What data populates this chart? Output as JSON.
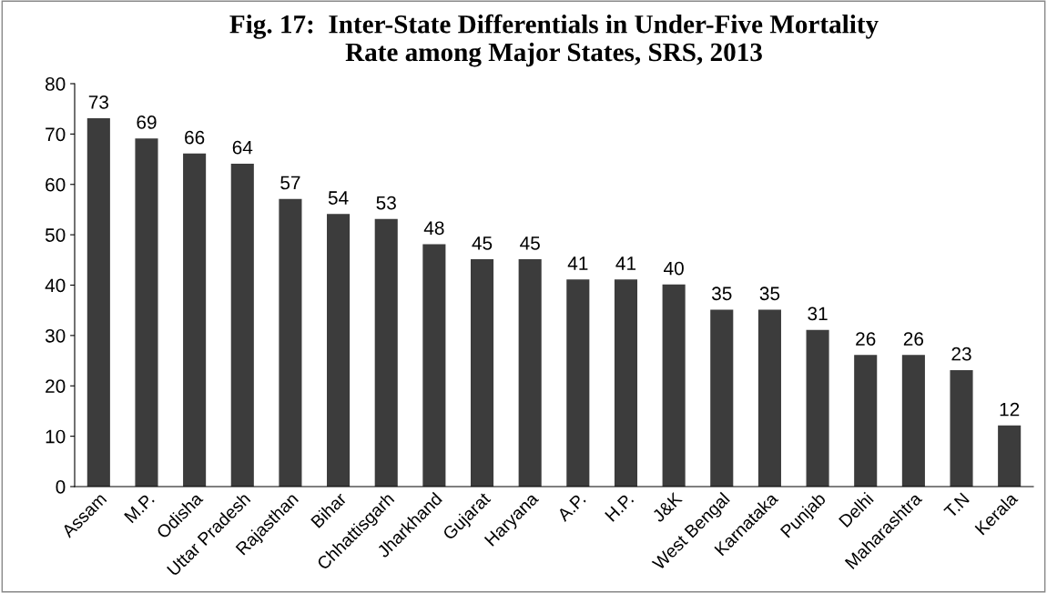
{
  "chart_data": {
    "type": "bar",
    "title": "Fig. 17:  Inter-State Differentials in Under-Five Mortality\nRate among Major States, SRS, 2013",
    "categories": [
      "Assam",
      "M.P.",
      "Odisha",
      "Uttar Pradesh",
      "Rajasthan",
      "Bihar",
      "Chhattisgarh",
      "Jharkhand",
      "Gujarat",
      "Haryana",
      "A.P.",
      "H.P.",
      "J&K",
      "West Bengal",
      "Karnataka",
      "Punjab",
      "Delhi",
      "Maharashtra",
      "T.N",
      "Kerala"
    ],
    "values": [
      73,
      69,
      66,
      64,
      57,
      54,
      53,
      48,
      45,
      45,
      41,
      41,
      40,
      35,
      35,
      31,
      26,
      26,
      23,
      12
    ],
    "color": "#3c3c3c",
    "ylim": [
      0,
      80
    ],
    "yticks": [
      0,
      10,
      20,
      30,
      40,
      50,
      60,
      70,
      80
    ],
    "grid": false,
    "data_labels": true
  }
}
